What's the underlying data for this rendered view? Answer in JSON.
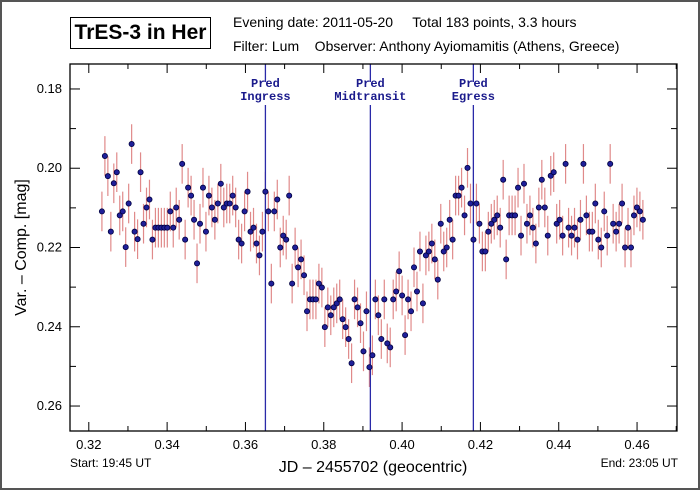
{
  "header": {
    "title": "TrES-3 in Her",
    "line1": "Evening date: 2011-05-20     Total 183 points, 3.3 hours",
    "line2": "Filter: Lum    Observer: Anthony Ayiomamitis (Athens, Greece)"
  },
  "footer": {
    "start": "Start: 19:45 UT",
    "end": "End: 23:05 UT"
  },
  "colors": {
    "point_fill": "#1f1f99",
    "point_edge": "#000040",
    "error_bar": "#e08a8a",
    "pred_line": "#2a2aa8",
    "annotation": "#1a1a8c"
  },
  "chart_data": {
    "type": "scatter",
    "title": "TrES-3 in Her",
    "xlabel": "JD – 2455702  (geocentric)",
    "ylabel": "Var. – Comp. [mag]",
    "xlim": [
      0.3152,
      0.4702
    ],
    "ylim": [
      0.1737,
      0.2663
    ],
    "y_inverted": true,
    "grid": false,
    "x_ticks": [
      0.32,
      0.34,
      0.36,
      0.38,
      0.4,
      0.42,
      0.44,
      0.46
    ],
    "x_tick_labels": [
      "0.32",
      "0.34",
      "0.36",
      "0.38",
      "0.40",
      "0.42",
      "0.44",
      "0.46"
    ],
    "x_minor_step": 0.01,
    "y_ticks": [
      0.18,
      0.2,
      0.22,
      0.24,
      0.26
    ],
    "y_tick_labels": [
      "0.18",
      "0.20",
      "0.22",
      "0.24",
      "0.26"
    ],
    "y_minor_step": 0.01,
    "predictions": [
      {
        "name": "ingress",
        "label_line1": "Pred",
        "label_line2": "Ingress",
        "x": 0.3651
      },
      {
        "name": "midtransit",
        "label_line1": "Pred",
        "label_line2": "Midtransit",
        "x": 0.3919
      },
      {
        "name": "egress",
        "label_line1": "Pred",
        "label_line2": "Egress",
        "x": 0.4182
      }
    ],
    "series": [
      {
        "name": "Var. - Comp.",
        "x_start": 0.32335,
        "x_step": 0.000759,
        "error": 0.005,
        "y": [
          0.2109,
          0.1969,
          0.202,
          0.216,
          0.2038,
          0.201,
          0.2119,
          0.2109,
          0.2199,
          0.2089,
          0.1939,
          0.216,
          0.2179,
          0.201,
          0.214,
          0.2099,
          0.2079,
          0.218,
          0.215,
          0.215,
          0.215,
          0.215,
          0.215,
          0.2109,
          0.215,
          0.2099,
          0.213,
          0.1989,
          0.218,
          0.2049,
          0.2069,
          0.213,
          0.224,
          0.214,
          0.2049,
          0.216,
          0.2069,
          0.2099,
          0.213,
          0.2089,
          0.2039,
          0.2099,
          0.2089,
          0.2089,
          0.2069,
          0.2099,
          0.218,
          0.219,
          0.2109,
          0.2059,
          0.216,
          0.215,
          0.219,
          0.222,
          0.216,
          0.2059,
          0.2109,
          0.2291,
          0.2109,
          0.2079,
          0.22,
          0.217,
          0.218,
          0.2069,
          0.2291,
          0.22,
          0.225,
          0.223,
          0.227,
          0.2361,
          0.2331,
          0.2331,
          0.2331,
          0.2291,
          0.2301,
          0.2401,
          0.2351,
          0.2371,
          0.2351,
          0.2341,
          0.2331,
          0.2381,
          0.2401,
          0.2431,
          0.2492,
          0.2331,
          0.2351,
          0.2391,
          0.2462,
          0.2361,
          0.2502,
          0.2472,
          0.2331,
          0.2371,
          0.2431,
          0.2331,
          0.2442,
          0.2452,
          0.2331,
          0.2311,
          0.226,
          0.2321,
          0.2421,
          0.2331,
          0.2361,
          0.225,
          0.2311,
          0.221,
          0.2341,
          0.222,
          0.221,
          0.219,
          0.223,
          0.2281,
          0.214,
          0.221,
          0.22,
          0.213,
          0.218,
          0.2069,
          0.2069,
          0.2049,
          0.2119,
          0.1999,
          0.2089,
          0.218,
          0.2089,
          0.214,
          0.221,
          0.221,
          0.216,
          0.214,
          0.213,
          0.2119,
          0.215,
          0.2029,
          0.223,
          0.2119,
          0.2119,
          0.2119,
          0.2049,
          0.217,
          0.2039,
          0.214,
          0.2119,
          0.215,
          0.219,
          0.2099,
          0.2029,
          0.2099,
          0.217,
          0.2019,
          0.201,
          0.214,
          0.213,
          0.217,
          0.1989,
          0.215,
          0.217,
          0.215,
          0.218,
          0.213,
          0.1989,
          0.2119,
          0.216,
          0.216,
          0.2089,
          0.218,
          0.22,
          0.2109,
          0.217,
          0.1989,
          0.214,
          0.216,
          0.214,
          0.2089,
          0.22,
          0.215,
          0.22,
          0.2119,
          0.2099,
          0.2109,
          0.213
        ]
      }
    ]
  }
}
